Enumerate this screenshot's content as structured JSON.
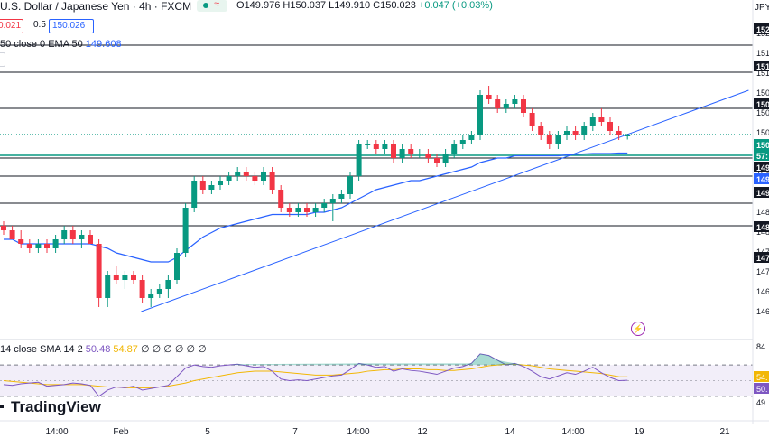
{
  "header": {
    "title": "U.S. Dollar / Japanese Yen · 4h · FXCM",
    "open_label": "O",
    "open": "149.976",
    "high_label": "H",
    "high": "150.037",
    "low_label": "L",
    "low": "149.910",
    "close_label": "C",
    "close": "150.023",
    "change": "+0.047 (+0.03%)",
    "sell_price": "0.021",
    "spread": "0.5",
    "buy_price": "150.026",
    "ema_label": "50 close 0 EMA 50",
    "ema_value": "149.608",
    "currency": "JPY"
  },
  "rsi_panel": {
    "label": "14 close SMA 14 2",
    "rsi_value": "50.48",
    "sma_value": "54.87",
    "zeros": "∅ ∅ ∅ ∅ ∅ ∅"
  },
  "branding": {
    "logo_text": "TradingView"
  },
  "colors": {
    "up": "#089981",
    "down": "#f23645",
    "ema": "#2962ff",
    "trendline": "#2962ff",
    "rsi": "#7e57c2",
    "rsi_sma": "#f2b705",
    "current_line": "#089981"
  },
  "chart_data": {
    "type": "candlestick",
    "symbol": "USDJPY",
    "timeframe": "4h",
    "price_axis_labels": [
      "152",
      "151",
      "151",
      "150",
      "150",
      "150",
      "149",
      "149",
      "149",
      "148",
      "148",
      "147",
      "147",
      "146",
      "146"
    ],
    "price_axis_tags": [
      {
        "text": "152",
        "style": "black"
      },
      {
        "text": "151",
        "style": "black"
      },
      {
        "text": "150",
        "style": "black"
      },
      {
        "text": "150",
        "style": "green"
      },
      {
        "text": "57:",
        "style": "green"
      },
      {
        "text": "149",
        "style": "black"
      },
      {
        "text": "149",
        "style": "blue"
      },
      {
        "text": "149",
        "style": "black"
      },
      {
        "text": "148",
        "style": "black"
      },
      {
        "text": "147",
        "style": "black"
      }
    ],
    "rsi_axis_labels": [
      "84.",
      "54.",
      "50.",
      "49."
    ],
    "x_labels": [
      "14:00",
      "Feb",
      "5",
      "7",
      "14:00",
      "12",
      "14",
      "14:00",
      "19",
      "21"
    ],
    "horizontal_levels": [
      152.0,
      151.4,
      150.6,
      149.5,
      149.1,
      148.5,
      148.0
    ],
    "current_price": 150.023,
    "candles": [
      [
        148.0,
        148.1,
        147.8,
        147.9
      ],
      [
        147.9,
        148.0,
        147.7,
        147.7
      ],
      [
        147.7,
        147.9,
        147.5,
        147.6
      ],
      [
        147.6,
        147.7,
        147.4,
        147.5
      ],
      [
        147.5,
        147.7,
        147.4,
        147.6
      ],
      [
        147.6,
        147.7,
        147.4,
        147.5
      ],
      [
        147.5,
        147.8,
        147.4,
        147.7
      ],
      [
        147.7,
        148.0,
        147.6,
        147.9
      ],
      [
        147.9,
        148.0,
        147.6,
        147.7
      ],
      [
        147.7,
        147.9,
        147.5,
        147.8
      ],
      [
        147.8,
        147.9,
        147.6,
        147.6
      ],
      [
        147.6,
        147.7,
        146.2,
        146.4
      ],
      [
        146.4,
        147.0,
        146.2,
        146.9
      ],
      [
        146.9,
        147.1,
        146.7,
        146.8
      ],
      [
        146.8,
        147.0,
        146.6,
        146.9
      ],
      [
        146.9,
        147.0,
        146.7,
        146.8
      ],
      [
        146.8,
        146.9,
        146.3,
        146.4
      ],
      [
        146.4,
        146.6,
        146.2,
        146.5
      ],
      [
        146.5,
        146.7,
        146.4,
        146.6
      ],
      [
        146.6,
        146.9,
        146.4,
        146.8
      ],
      [
        146.8,
        147.5,
        146.7,
        147.4
      ],
      [
        147.4,
        148.5,
        147.3,
        148.4
      ],
      [
        148.4,
        149.1,
        148.3,
        149.0
      ],
      [
        149.0,
        149.1,
        148.7,
        148.8
      ],
      [
        148.8,
        149.0,
        148.7,
        148.9
      ],
      [
        148.9,
        149.1,
        148.8,
        149.0
      ],
      [
        149.0,
        149.2,
        148.9,
        149.1
      ],
      [
        149.1,
        149.3,
        149.0,
        149.2
      ],
      [
        149.2,
        149.3,
        149.0,
        149.1
      ],
      [
        149.1,
        149.2,
        148.9,
        149.0
      ],
      [
        149.0,
        149.3,
        148.9,
        149.2
      ],
      [
        149.2,
        149.3,
        148.7,
        148.8
      ],
      [
        148.8,
        148.9,
        148.3,
        148.4
      ],
      [
        148.4,
        148.5,
        148.2,
        148.3
      ],
      [
        148.3,
        148.5,
        148.2,
        148.4
      ],
      [
        148.4,
        148.5,
        148.2,
        148.3
      ],
      [
        148.3,
        148.5,
        148.2,
        148.4
      ],
      [
        148.4,
        148.6,
        148.3,
        148.5
      ],
      [
        148.5,
        148.7,
        148.1,
        148.6
      ],
      [
        148.6,
        148.8,
        148.5,
        148.7
      ],
      [
        148.7,
        149.2,
        148.6,
        149.1
      ],
      [
        149.1,
        149.9,
        149.0,
        149.8
      ],
      [
        149.8,
        149.9,
        149.7,
        149.8
      ],
      [
        149.8,
        149.9,
        149.6,
        149.7
      ],
      [
        149.7,
        149.9,
        149.6,
        149.8
      ],
      [
        149.8,
        149.9,
        149.4,
        149.5
      ],
      [
        149.5,
        149.8,
        149.4,
        149.7
      ],
      [
        149.7,
        149.8,
        149.5,
        149.6
      ],
      [
        149.6,
        149.7,
        149.5,
        149.6
      ],
      [
        149.6,
        149.7,
        149.4,
        149.5
      ],
      [
        149.5,
        149.6,
        149.3,
        149.4
      ],
      [
        149.4,
        149.7,
        149.3,
        149.6
      ],
      [
        149.6,
        149.9,
        149.5,
        149.8
      ],
      [
        149.8,
        150.0,
        149.7,
        149.9
      ],
      [
        149.9,
        150.1,
        149.8,
        150.0
      ],
      [
        150.0,
        151.0,
        149.9,
        150.9
      ],
      [
        150.9,
        151.1,
        150.7,
        150.8
      ],
      [
        150.8,
        150.9,
        150.5,
        150.6
      ],
      [
        150.6,
        150.8,
        150.5,
        150.7
      ],
      [
        150.7,
        150.9,
        150.6,
        150.8
      ],
      [
        150.8,
        150.9,
        150.4,
        150.5
      ],
      [
        150.5,
        150.6,
        150.1,
        150.2
      ],
      [
        150.2,
        150.3,
        149.9,
        150.0
      ],
      [
        150.0,
        150.1,
        149.7,
        149.8
      ],
      [
        149.8,
        150.1,
        149.7,
        150.0
      ],
      [
        150.0,
        150.2,
        149.9,
        150.1
      ],
      [
        150.1,
        150.2,
        149.9,
        150.0
      ],
      [
        150.0,
        150.3,
        149.9,
        150.2
      ],
      [
        150.2,
        150.5,
        150.1,
        150.4
      ],
      [
        150.4,
        150.6,
        150.2,
        150.3
      ],
      [
        150.3,
        150.4,
        150.0,
        150.1
      ],
      [
        150.1,
        150.2,
        149.9,
        150.0
      ],
      [
        149.98,
        150.04,
        149.91,
        150.02
      ]
    ],
    "ema50": [
      147.7,
      147.7,
      147.6,
      147.6,
      147.6,
      147.6,
      147.6,
      147.6,
      147.6,
      147.6,
      147.6,
      147.55,
      147.5,
      147.4,
      147.35,
      147.3,
      147.25,
      147.2,
      147.2,
      147.2,
      147.3,
      147.45,
      147.6,
      147.75,
      147.85,
      147.95,
      148.0,
      148.05,
      148.1,
      148.15,
      148.2,
      148.25,
      148.25,
      148.25,
      148.25,
      148.25,
      148.3,
      148.3,
      148.35,
      148.4,
      148.5,
      148.6,
      148.7,
      148.8,
      148.85,
      148.9,
      148.95,
      149.0,
      149.0,
      149.05,
      149.1,
      149.15,
      149.2,
      149.25,
      149.3,
      149.4,
      149.45,
      149.5,
      149.5,
      149.55,
      149.55,
      149.55,
      149.55,
      149.55,
      149.55,
      149.57,
      149.58,
      149.59,
      149.6,
      149.6,
      149.6,
      149.61,
      149.61
    ],
    "trendline": {
      "from": [
        19,
        146.1
      ],
      "to": [
        99,
        151.0
      ]
    },
    "rsi": [
      45,
      44,
      46,
      47,
      48,
      43,
      44,
      45,
      47,
      46,
      44,
      30,
      38,
      42,
      41,
      43,
      38,
      40,
      42,
      44,
      55,
      66,
      70,
      68,
      67,
      69,
      70,
      71,
      69,
      67,
      68,
      62,
      52,
      50,
      51,
      50,
      52,
      54,
      56,
      57,
      64,
      72,
      70,
      67,
      68,
      62,
      65,
      63,
      62,
      60,
      58,
      62,
      66,
      68,
      72,
      84,
      82,
      76,
      70,
      72,
      68,
      62,
      55,
      52,
      56,
      60,
      58,
      62,
      67,
      60,
      54,
      50,
      50.5
    ],
    "rsi_sma": [
      50,
      49,
      48,
      47,
      46,
      45,
      45,
      45,
      45,
      45,
      44,
      43,
      42,
      42,
      41,
      41,
      41,
      41,
      42,
      43,
      45,
      47,
      50,
      52,
      54,
      56,
      58,
      60,
      61,
      62,
      62,
      62,
      61,
      60,
      59,
      58,
      57,
      57,
      57,
      58,
      59,
      60,
      62,
      63,
      64,
      64,
      65,
      65,
      65,
      64,
      64,
      63,
      63,
      64,
      65,
      67,
      69,
      70,
      71,
      71,
      70,
      69,
      67,
      65,
      64,
      63,
      62,
      61,
      60,
      59,
      57,
      55,
      54.87
    ],
    "rsi_levels": [
      70,
      30
    ]
  }
}
